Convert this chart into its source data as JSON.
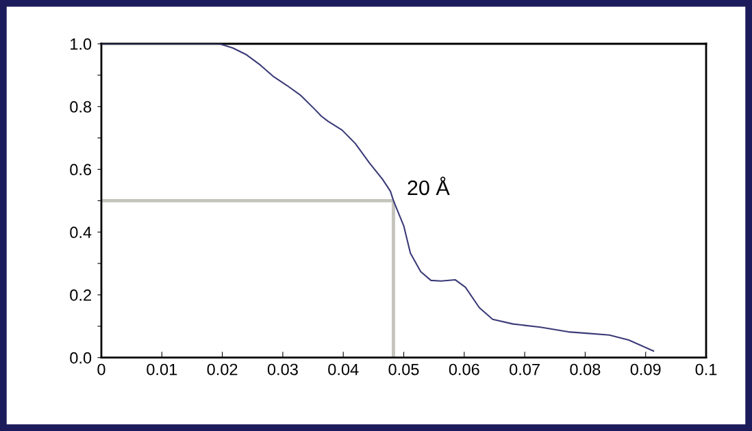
{
  "chart_data": {
    "type": "line",
    "x": [
      0,
      0.0195,
      0.0217,
      0.024,
      0.0263,
      0.0285,
      0.0307,
      0.033,
      0.0353,
      0.0364,
      0.0375,
      0.0398,
      0.042,
      0.0443,
      0.0465,
      0.0478,
      0.0483,
      0.05,
      0.0511,
      0.0528,
      0.0545,
      0.0562,
      0.0585,
      0.0602,
      0.0625,
      0.0647,
      0.0681,
      0.0726,
      0.0772,
      0.0806,
      0.084,
      0.0872,
      0.0913
    ],
    "series": [
      {
        "color": "#3a3a78",
        "values": [
          1.0,
          1.0,
          0.987,
          0.965,
          0.932,
          0.895,
          0.867,
          0.835,
          0.791,
          0.769,
          0.753,
          0.725,
          0.682,
          0.621,
          0.568,
          0.53,
          0.5,
          0.42,
          0.333,
          0.274,
          0.246,
          0.244,
          0.248,
          0.224,
          0.159,
          0.122,
          0.107,
          0.097,
          0.082,
          0.077,
          0.072,
          0.056,
          0.021
        ]
      }
    ],
    "xlim": [
      0,
      0.1
    ],
    "ylim": [
      0,
      1.0
    ],
    "xticks": [
      {
        "value": 0,
        "label": "0"
      },
      0.01,
      0.02,
      0.03,
      0.04,
      0.05,
      0.06,
      0.07,
      0.08,
      0.09,
      {
        "value": 0.1,
        "label": "0.1"
      }
    ],
    "yticks": [
      {
        "value": 0,
        "label": "0.0"
      },
      {
        "value": 0.1,
        "label": null
      },
      0.2,
      {
        "value": 0.3,
        "label": null
      },
      0.4,
      {
        "value": 0.5,
        "label": null
      },
      0.6,
      {
        "value": 0.7,
        "label": null
      },
      0.8,
      {
        "value": 0.9,
        "label": null
      },
      {
        "value": 1.0,
        "label": "1.0"
      }
    ],
    "ref_lines": [
      {
        "axis": "y",
        "value": 0.5,
        "color": "#c4c4bc"
      },
      {
        "axis": "x",
        "value": 0.0483,
        "color": "#c4c4bc"
      }
    ],
    "annotations": [
      {
        "text": "20 Å",
        "x": 0.0483,
        "y": 0.5
      }
    ],
    "grid": false,
    "legend": false,
    "marker": "none",
    "line_style": "solid"
  }
}
